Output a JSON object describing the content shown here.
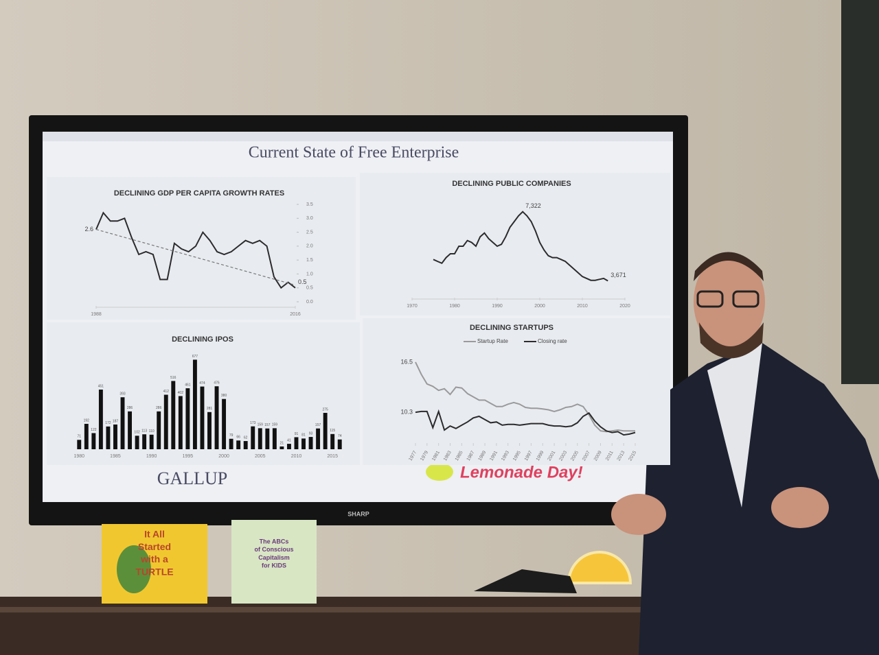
{
  "slide": {
    "title": "Current State of Free Enterprise",
    "left_logo": "GALLUP",
    "right_logo": "Lemonade Day!"
  },
  "tv_brand": "SHARP",
  "books": [
    [
      "It All",
      "Started",
      "with a",
      "TURTLE"
    ],
    [
      "The ABCs",
      "of Conscious",
      "Capitalism",
      "for KIDS"
    ]
  ],
  "chart_data": [
    {
      "type": "line",
      "title": "DECLINING GDP PER CAPITA GROWTH RATES",
      "x": [
        1988,
        1989,
        1990,
        1991,
        1992,
        1993,
        1994,
        1995,
        1996,
        1997,
        1998,
        1999,
        2000,
        2001,
        2002,
        2003,
        2004,
        2005,
        2006,
        2007,
        2008,
        2009,
        2010,
        2011,
        2012,
        2013,
        2014,
        2015,
        2016
      ],
      "series": [
        {
          "color": "#2b2b2b",
          "values": [
            2.6,
            3.2,
            2.9,
            2.9,
            3.0,
            2.3,
            1.7,
            1.8,
            1.7,
            0.8,
            0.8,
            2.1,
            1.9,
            1.8,
            2.0,
            2.5,
            2.2,
            1.8,
            1.7,
            1.8,
            2.0,
            2.2,
            2.1,
            2.2,
            2.0,
            0.9,
            0.5,
            0.7,
            0.5
          ],
          "value_labels": [
            "2.6",
            null,
            null,
            null,
            null,
            null,
            null,
            null,
            null,
            null,
            null,
            null,
            null,
            null,
            null,
            null,
            null,
            null,
            null,
            null,
            null,
            null,
            null,
            null,
            null,
            null,
            null,
            null,
            "0.5"
          ]
        }
      ],
      "trend": {
        "x": [
          1988,
          2016
        ],
        "values": [
          2.6,
          0.6
        ],
        "color": "#777777"
      },
      "xlim": [
        1988,
        2016
      ],
      "xticks": [
        1988,
        2016
      ],
      "ylim": [
        0,
        3.5
      ],
      "yticks": [
        {
          "value": 0,
          "label": "0.0"
        },
        {
          "value": 0.5,
          "label": "0.5"
        },
        {
          "value": 1,
          "label": "1.0"
        },
        {
          "value": 1.5,
          "label": "1.5"
        },
        {
          "value": 2,
          "label": "2.0"
        },
        {
          "value": 2.5,
          "label": "2.5"
        },
        {
          "value": 3,
          "label": "3.0"
        },
        {
          "value": 3.5,
          "label": "3.5"
        }
      ],
      "y_axis_side": "right"
    },
    {
      "type": "line",
      "title": "DECLINING PUBLIC COMPANIES",
      "x": [
        1975,
        1976,
        1977,
        1978,
        1979,
        1980,
        1981,
        1982,
        1983,
        1984,
        1985,
        1986,
        1987,
        1988,
        1989,
        1990,
        1991,
        1992,
        1993,
        1994,
        1995,
        1996,
        1997,
        1998,
        1999,
        2000,
        2001,
        2002,
        2003,
        2004,
        2005,
        2006,
        2007,
        2008,
        2009,
        2010,
        2011,
        2012,
        2013,
        2014,
        2015,
        2016
      ],
      "series": [
        {
          "color": "#2b2b2b",
          "values": [
            4800,
            4700,
            4600,
            4900,
            5100,
            5100,
            5500,
            5500,
            5800,
            5700,
            5500,
            6000,
            6200,
            5900,
            5700,
            5500,
            5600,
            6000,
            6500,
            6800,
            7100,
            7322,
            7100,
            6800,
            6300,
            5700,
            5300,
            5000,
            4900,
            4900,
            4800,
            4700,
            4500,
            4300,
            4100,
            3900,
            3800,
            3700,
            3700,
            3750,
            3800,
            3671
          ],
          "value_labels": [
            null,
            null,
            null,
            null,
            null,
            null,
            null,
            null,
            null,
            null,
            null,
            null,
            null,
            null,
            null,
            null,
            null,
            null,
            null,
            null,
            null,
            "7,322",
            null,
            null,
            null,
            null,
            null,
            null,
            null,
            null,
            null,
            null,
            null,
            null,
            null,
            null,
            null,
            null,
            null,
            null,
            null,
            "3,671"
          ]
        }
      ],
      "xlim": [
        1970,
        2020
      ],
      "xticks": [
        1970,
        1980,
        1990,
        2000,
        2010,
        2020
      ],
      "ylim": [
        3000,
        8000
      ]
    },
    {
      "type": "bar",
      "title": "DECLINING IPOS",
      "categories": [
        1980,
        null,
        null,
        null,
        null,
        1985,
        null,
        null,
        null,
        null,
        1990,
        null,
        null,
        null,
        null,
        1995,
        null,
        null,
        null,
        null,
        2000,
        null,
        null,
        null,
        null,
        2005,
        null,
        null,
        null,
        null,
        2010,
        null,
        null,
        null,
        null,
        2015,
        null
      ],
      "values": [
        71,
        192,
        122,
        451,
        172,
        187,
        393,
        286,
        102,
        113,
        110,
        286,
        412,
        516,
        402,
        461,
        677,
        474,
        281,
        476,
        380,
        79,
        66,
        62,
        173,
        159,
        157,
        159,
        21,
        41,
        91,
        81,
        93,
        157,
        275,
        115,
        74
      ],
      "color": "#111111",
      "ylim": [
        0,
        700
      ]
    },
    {
      "type": "line",
      "title": "DECLINING STARTUPS",
      "x": [
        1977,
        1978,
        1979,
        1980,
        1981,
        1982,
        1983,
        1984,
        1985,
        1986,
        1987,
        1988,
        1989,
        1990,
        1991,
        1992,
        1993,
        1994,
        1995,
        1996,
        1997,
        1998,
        1999,
        2000,
        2001,
        2002,
        2003,
        2004,
        2005,
        2006,
        2007,
        2008,
        2009,
        2010,
        2011,
        2012,
        2013,
        2014,
        2015
      ],
      "series": [
        {
          "name": "Startup Rate",
          "color": "#9a9a9a",
          "values": [
            16.5,
            15.0,
            13.8,
            13.5,
            13.0,
            13.2,
            12.5,
            13.4,
            13.3,
            12.6,
            12.2,
            11.8,
            11.8,
            11.4,
            11.0,
            11.0,
            11.3,
            11.5,
            11.3,
            10.9,
            10.8,
            10.8,
            10.7,
            10.6,
            10.4,
            10.6,
            10.9,
            11.0,
            11.3,
            11.0,
            10.0,
            8.7,
            8.0,
            7.9,
            8.0,
            8.1,
            8.0,
            8.0,
            8.0
          ],
          "value_labels": [
            "16.5",
            null,
            null,
            null,
            null,
            null,
            null,
            null,
            null,
            null,
            null,
            null,
            null,
            null,
            null,
            null,
            null,
            null,
            null,
            null,
            null,
            null,
            null,
            null,
            null,
            null,
            null,
            null,
            null,
            null,
            null,
            null,
            null,
            null,
            null,
            null,
            null,
            null,
            null
          ]
        },
        {
          "name": "Closing rate",
          "color": "#2b2b2b",
          "values": [
            10.3,
            10.4,
            10.4,
            8.4,
            10.4,
            8.1,
            8.6,
            8.3,
            8.7,
            9.1,
            9.6,
            9.8,
            9.4,
            9.0,
            9.1,
            8.7,
            8.8,
            8.8,
            8.7,
            8.8,
            8.9,
            8.9,
            8.9,
            8.7,
            8.6,
            8.6,
            8.5,
            8.6,
            9.0,
            9.8,
            10.2,
            9.2,
            8.5,
            8.0,
            7.8,
            7.9,
            7.5,
            7.6,
            7.8
          ],
          "value_labels": [
            "10.3",
            null,
            null,
            null,
            null,
            null,
            null,
            null,
            null,
            null,
            null,
            null,
            null,
            null,
            null,
            null,
            null,
            null,
            null,
            null,
            null,
            null,
            null,
            null,
            null,
            null,
            null,
            null,
            null,
            null,
            null,
            null,
            null,
            null,
            null,
            null,
            null,
            null,
            null
          ]
        }
      ],
      "xlim": [
        1977,
        2015
      ],
      "xticks": [
        1977,
        1979,
        1981,
        1983,
        1985,
        1987,
        1989,
        1991,
        1993,
        1995,
        1997,
        1999,
        2001,
        2003,
        2005,
        2007,
        2009,
        2011,
        2013,
        2015
      ],
      "x_label_rotation": -60,
      "ylim": [
        7,
        17
      ],
      "legend": "top"
    }
  ]
}
